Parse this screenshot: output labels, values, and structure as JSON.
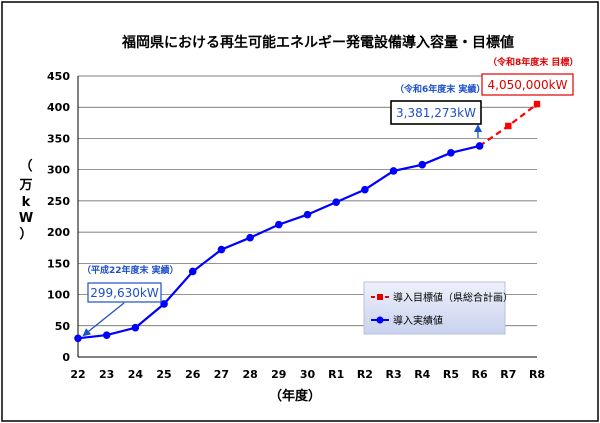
{
  "chart_data": {
    "type": "line",
    "title": "福岡県における再生可能エネルギー発電設備導入容量・目標値",
    "ylabel_chars": [
      "（",
      "万",
      "k",
      "W",
      "）"
    ],
    "xlabel": "（年度）",
    "ylim": [
      0,
      450
    ],
    "yticks": [
      0,
      50,
      100,
      150,
      200,
      250,
      300,
      350,
      400,
      450
    ],
    "categories": [
      "22",
      "23",
      "24",
      "25",
      "26",
      "27",
      "28",
      "29",
      "30",
      "R1",
      "R2",
      "R3",
      "R4",
      "R5",
      "R6",
      "R7",
      "R8"
    ],
    "series": [
      {
        "name": "導入実績値",
        "color": "#0000ff",
        "style": "solid",
        "marker": "circle",
        "values": [
          30,
          35,
          47,
          85,
          137,
          172,
          191,
          212,
          228,
          248,
          268,
          298,
          308,
          327,
          338,
          null,
          null
        ]
      },
      {
        "name": "導入目標値（県総合計画）",
        "color": "#ff0000",
        "style": "dashed",
        "marker": "square",
        "values": [
          null,
          null,
          null,
          null,
          null,
          null,
          null,
          null,
          null,
          null,
          null,
          null,
          null,
          null,
          338,
          370,
          405
        ]
      }
    ],
    "annotations": {
      "h22": {
        "label": "（平成22年度末 実績）",
        "value": "299,630kW"
      },
      "r6": {
        "label": "（令和6年度末 実績）",
        "value": "3,381,273kW"
      },
      "r8": {
        "label": "（令和8年度末 目標）",
        "value": "4,050,000kW"
      }
    },
    "legend": {
      "position": "lower-right"
    }
  }
}
